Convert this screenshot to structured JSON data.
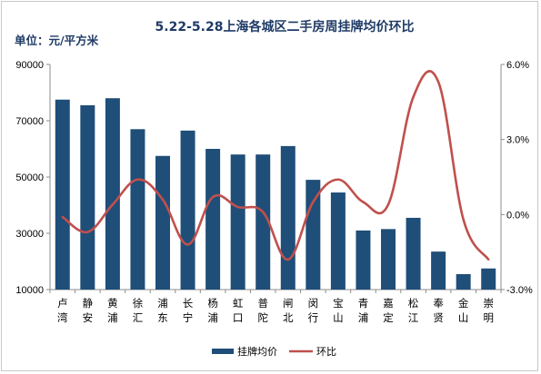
{
  "chart_data": {
    "type": "bar",
    "title": "5.22-5.28上海各城区二手房周挂牌均价环比",
    "unit_label": "单位：元/平方米",
    "categories": [
      [
        "卢",
        "湾"
      ],
      [
        "静",
        "安"
      ],
      [
        "黄",
        "浦"
      ],
      [
        "徐",
        "汇"
      ],
      [
        "浦",
        "东"
      ],
      [
        "长",
        "宁"
      ],
      [
        "杨",
        "浦"
      ],
      [
        "虹",
        "口"
      ],
      [
        "普",
        "陀"
      ],
      [
        "闸",
        "北"
      ],
      [
        "闵",
        "行"
      ],
      [
        "宝",
        "山"
      ],
      [
        "青",
        "浦"
      ],
      [
        "嘉",
        "定"
      ],
      [
        "松",
        "江"
      ],
      [
        "奉",
        "贤"
      ],
      [
        "金",
        "山"
      ],
      [
        "崇",
        "明"
      ]
    ],
    "series": [
      {
        "name": "挂牌均价",
        "type": "bar",
        "axis": "left",
        "color": "#1f4e79",
        "values": [
          77500,
          75500,
          78000,
          67000,
          57500,
          66500,
          60000,
          58000,
          58000,
          61000,
          49000,
          44500,
          31000,
          31500,
          35500,
          23500,
          15500,
          17500
        ]
      },
      {
        "name": "环比",
        "type": "line",
        "axis": "right",
        "color": "#c0504d",
        "values": [
          -0.1,
          -0.7,
          0.4,
          1.4,
          0.6,
          -1.2,
          0.7,
          0.3,
          0.1,
          -1.8,
          0.5,
          1.4,
          0.5,
          0.4,
          4.7,
          5.3,
          -0.2,
          -1.8
        ]
      }
    ],
    "left_axis": {
      "min": 10000,
      "max": 90000,
      "ticks": [
        "10000",
        "30000",
        "50000",
        "70000",
        "90000"
      ]
    },
    "right_axis": {
      "min": -3.0,
      "max": 6.0,
      "ticks": [
        "-3.0%",
        "0.0%",
        "3.0%",
        "6.0%"
      ]
    },
    "grid": false,
    "legend_position": "bottom"
  }
}
